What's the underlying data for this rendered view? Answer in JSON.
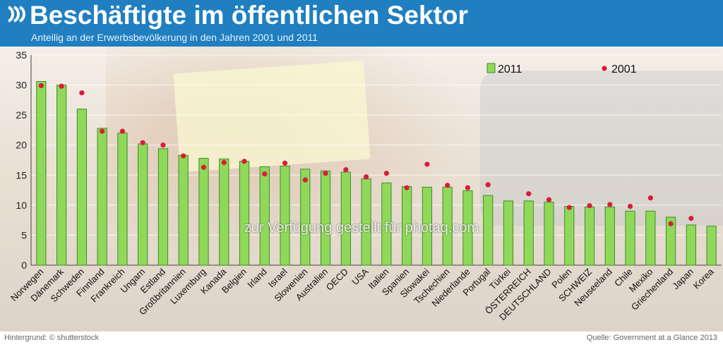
{
  "header": {
    "title": "Beschäftigte im öffentlichen Sektor",
    "subtitle": "Anteilig an der Erwerbsbevölkerung in den Jahren 2001 und 2011",
    "logo_icon": "oecd-logo-icon"
  },
  "footer": {
    "background_credit": "Hintergrund: © shutterstock",
    "source": "Quelle: Government at a Glance 2013"
  },
  "watermark": "zur Verfügung gestellt für photaq.com",
  "colors": {
    "bar": "#8fd85a",
    "bar_edge": "#3f8f22",
    "dot": "#d91c3c",
    "header": "#1f7fc1"
  },
  "chart_data": {
    "type": "bar",
    "title": "Beschäftigte im öffentlichen Sektor",
    "subtitle": "Anteilig an der Erwerbsbevölkerung in den Jahren 2001 und 2011",
    "xlabel": "",
    "ylabel": "",
    "ylim": [
      0,
      35
    ],
    "yticks": [
      "0",
      "5",
      "10",
      "15",
      "20",
      "25",
      "30",
      "35"
    ],
    "grid": true,
    "legend": "top-right",
    "categories": [
      "Norwegen",
      "Dänemark",
      "Schweden",
      "Finnland",
      "Frankreich",
      "Ungarn",
      "Estland",
      "Großbritannien",
      "Luxemburg",
      "Kanada",
      "Belgien",
      "Irland",
      "Israel",
      "Slowenien",
      "Australien",
      "OECD",
      "USA",
      "Italien",
      "Spanien",
      "Slowakei",
      "Tschechien",
      "Niederlande",
      "Portugal",
      "Türkei",
      "ÖSTERREICH",
      "DEUTSCHLAND",
      "Polen",
      "SCHWEIZ",
      "Neuseeland",
      "Chile",
      "Mexiko",
      "Griechenland",
      "Japan",
      "Korea"
    ],
    "series": [
      {
        "name": "2011",
        "type": "bar",
        "values": [
          30.6,
          30.0,
          26.0,
          22.8,
          22.0,
          20.2,
          19.4,
          18.3,
          17.8,
          17.7,
          17.3,
          16.4,
          16.5,
          16.0,
          15.7,
          15.5,
          14.4,
          13.7,
          13.1,
          13.0,
          13.0,
          12.4,
          11.6,
          10.7,
          10.7,
          10.5,
          9.8,
          9.7,
          9.7,
          9.0,
          9.0,
          8.0,
          6.7,
          6.5
        ]
      },
      {
        "name": "2001",
        "type": "scatter",
        "values": [
          29.9,
          29.8,
          28.7,
          22.3,
          22.3,
          20.4,
          20.0,
          18.2,
          16.3,
          17.1,
          17.3,
          15.2,
          17.0,
          14.2,
          15.3,
          15.9,
          14.7,
          15.3,
          12.9,
          16.8,
          13.3,
          12.9,
          13.4,
          null,
          11.9,
          10.9,
          9.6,
          9.9,
          10.1,
          9.8,
          11.2,
          6.9,
          7.8,
          null
        ]
      }
    ]
  }
}
